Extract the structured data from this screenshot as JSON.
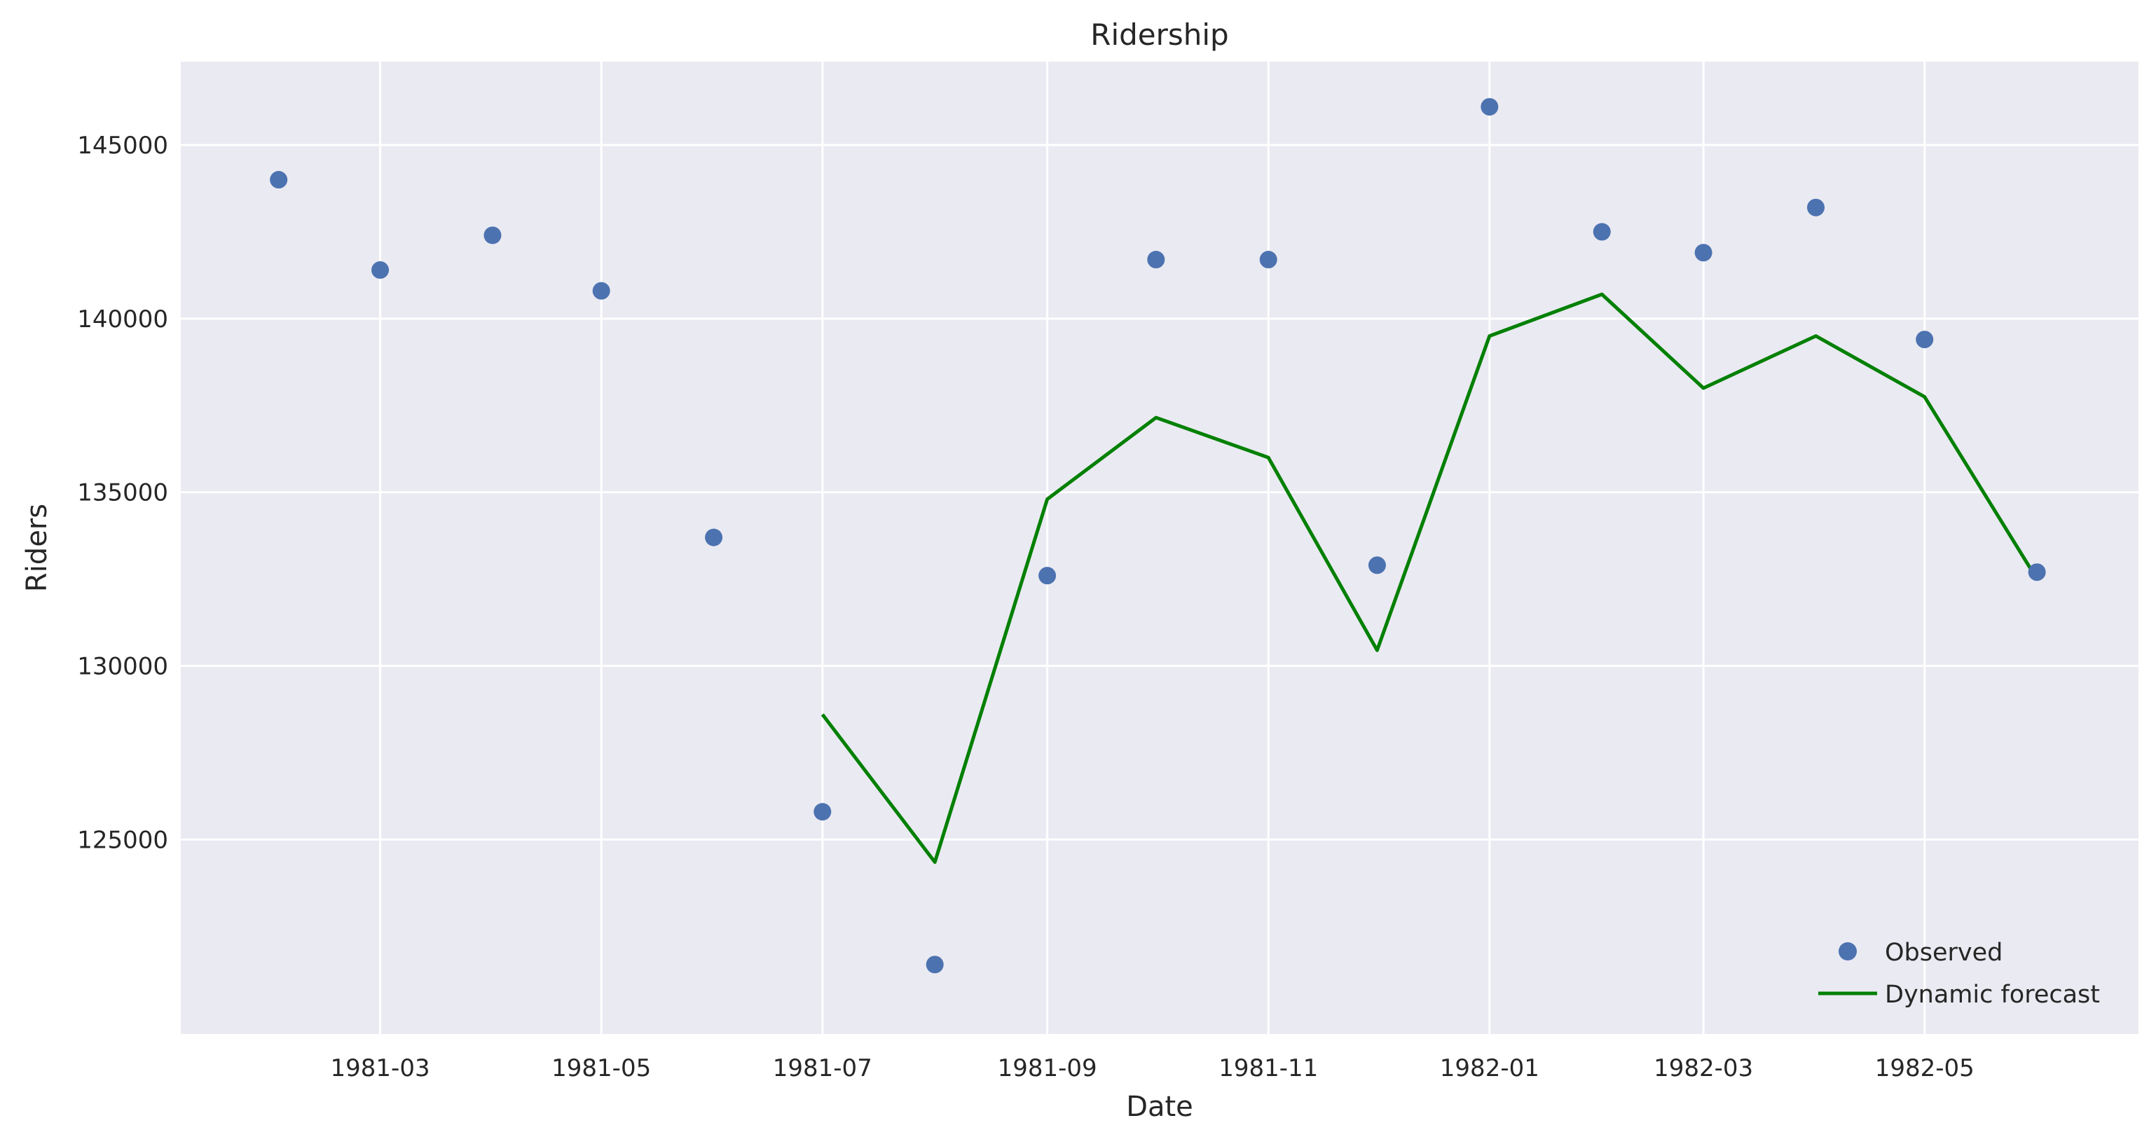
{
  "chart_data": {
    "type": "line",
    "title": "Ridership",
    "xlabel": "Date",
    "ylabel": "Riders",
    "x_ticks": [
      "1981-03",
      "1981-05",
      "1981-07",
      "1981-09",
      "1981-11",
      "1982-01",
      "1982-03",
      "1982-05"
    ],
    "y_ticks": [
      125000,
      130000,
      135000,
      140000,
      145000
    ],
    "xlim": [
      "1981-01-05",
      "1982-06-29"
    ],
    "ylim": [
      119400,
      147400
    ],
    "grid": true,
    "legend_position": "bottom-right",
    "colors": {
      "plot_background": "#eaeaf2",
      "observed": "#4c72b0",
      "forecast": "#008000",
      "grid": "#ffffff"
    },
    "series": [
      {
        "name": "Observed",
        "style": "markers",
        "points": [
          {
            "x": "1981-02-01",
            "y": 144000
          },
          {
            "x": "1981-03-01",
            "y": 141400
          },
          {
            "x": "1981-04-01",
            "y": 142400
          },
          {
            "x": "1981-05-01",
            "y": 140800
          },
          {
            "x": "1981-06-01",
            "y": 133700
          },
          {
            "x": "1981-07-01",
            "y": 125800
          },
          {
            "x": "1981-08-01",
            "y": 121400
          },
          {
            "x": "1981-09-01",
            "y": 132600
          },
          {
            "x": "1981-10-01",
            "y": 141700
          },
          {
            "x": "1981-11-01",
            "y": 141700
          },
          {
            "x": "1981-12-01",
            "y": 132900
          },
          {
            "x": "1982-01-01",
            "y": 146100
          },
          {
            "x": "1982-02-01",
            "y": 142500
          },
          {
            "x": "1982-03-01",
            "y": 141900
          },
          {
            "x": "1982-04-01",
            "y": 143200
          },
          {
            "x": "1982-05-01",
            "y": 139400
          },
          {
            "x": "1982-06-01",
            "y": 132700
          }
        ]
      },
      {
        "name": "Dynamic forecast",
        "style": "line",
        "points": [
          {
            "x": "1981-07-01",
            "y": 128600
          },
          {
            "x": "1981-08-01",
            "y": 124350
          },
          {
            "x": "1981-09-01",
            "y": 134800
          },
          {
            "x": "1981-10-01",
            "y": 137150
          },
          {
            "x": "1981-11-01",
            "y": 136000
          },
          {
            "x": "1981-12-01",
            "y": 130450
          },
          {
            "x": "1982-01-01",
            "y": 139500
          },
          {
            "x": "1982-02-01",
            "y": 140700
          },
          {
            "x": "1982-03-01",
            "y": 138000
          },
          {
            "x": "1982-04-01",
            "y": 139500
          },
          {
            "x": "1982-05-01",
            "y": 137750
          },
          {
            "x": "1982-06-01",
            "y": 132500
          }
        ]
      }
    ]
  }
}
